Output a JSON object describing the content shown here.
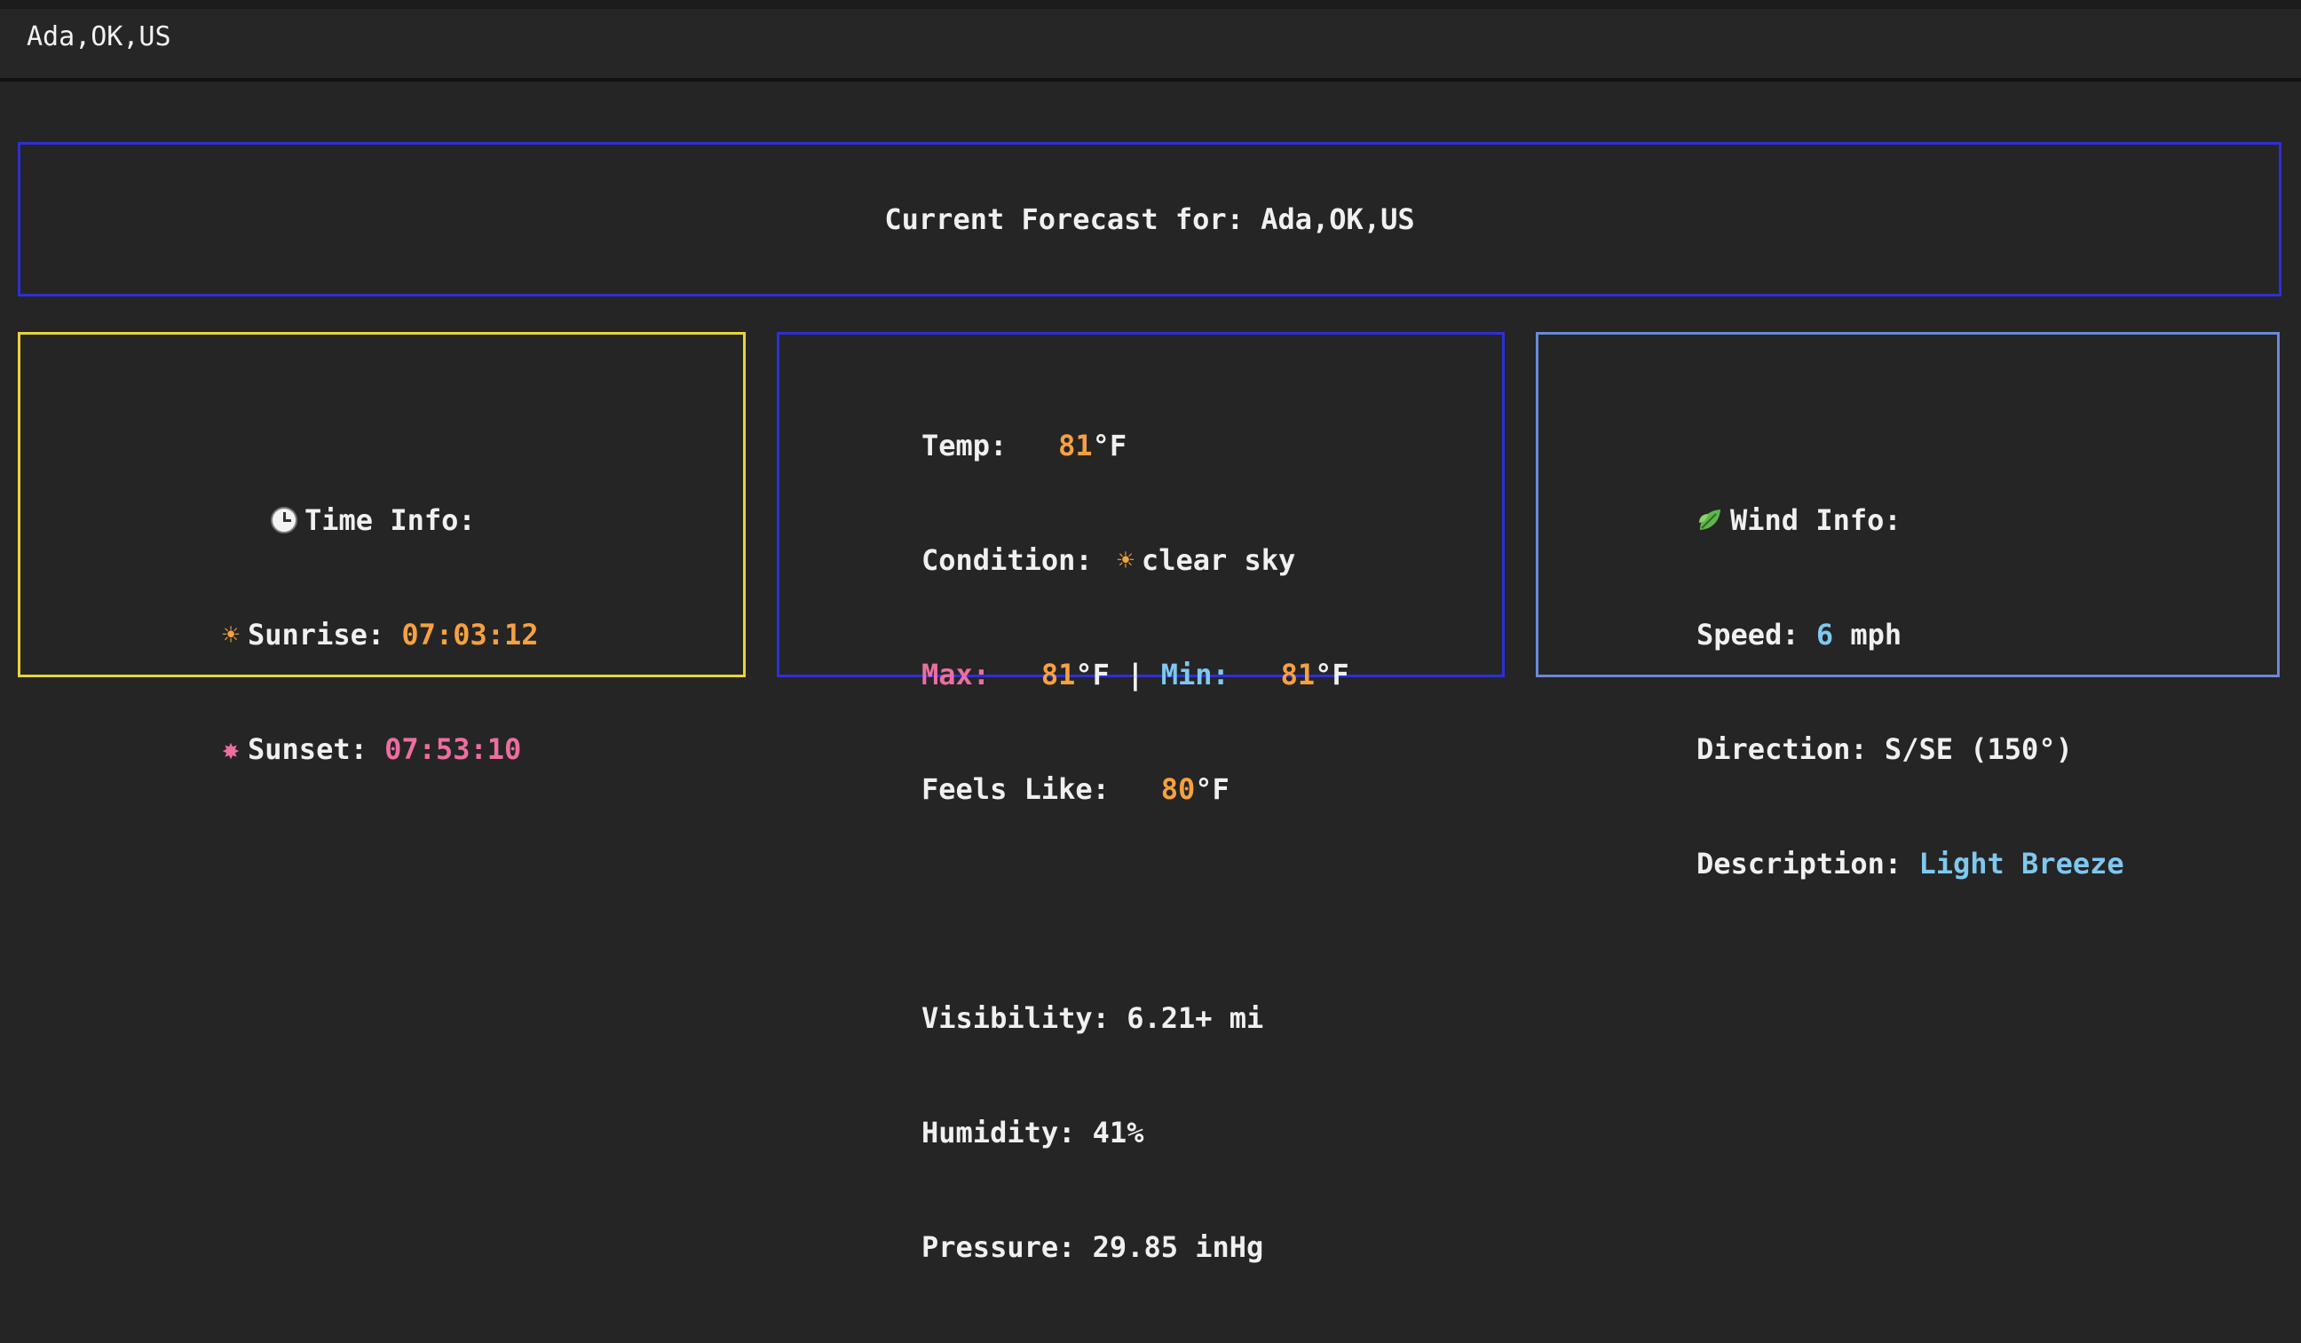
{
  "location_input": {
    "value": "Ada,OK,US"
  },
  "banner": {
    "label": "Current Forecast for: ",
    "location": "Ada,OK,US"
  },
  "time_info": {
    "title": "Time Info:",
    "sunrise_label": "Sunrise: ",
    "sunrise": "07:03:12",
    "sunset_label": "Sunset: ",
    "sunset": "07:53:10",
    "icons": [
      "clock-icon",
      "sun-icon",
      "sun-icon"
    ]
  },
  "weather": {
    "temp_label": "Temp:   ",
    "temp": "81",
    "unit": "°F",
    "condition_label": "Condition: ",
    "condition": "clear sky",
    "max_label": "Max:   ",
    "max": "81",
    "separator": " | ",
    "min_label": "Min:   ",
    "min": "81",
    "feels_label": "Feels Like:   ",
    "feels": "80",
    "visibility_label": "Visibility: ",
    "visibility": "6.21+ mi",
    "humidity_label": "Humidity: ",
    "humidity": "41%",
    "pressure_label": "Pressure: ",
    "pressure": "29.85 inHg",
    "icons": [
      "sun-icon"
    ]
  },
  "wind": {
    "title": "Wind Info:",
    "speed_label": "Speed: ",
    "speed": "6",
    "speed_unit": " mph",
    "direction_label": "Direction: ",
    "direction": "S/SE (150°)",
    "description_label": "Description: ",
    "description": "Light Breeze",
    "icons": [
      "leaf-icon"
    ]
  },
  "colors": {
    "banner_border": "#2d2fd6",
    "time_border": "#e6d43a",
    "weather_border": "#2d2fd6",
    "wind_border": "#6a8ad6",
    "orange": "#f6a140",
    "pink": "#ec6ea0",
    "blue": "#7fc8ef"
  }
}
